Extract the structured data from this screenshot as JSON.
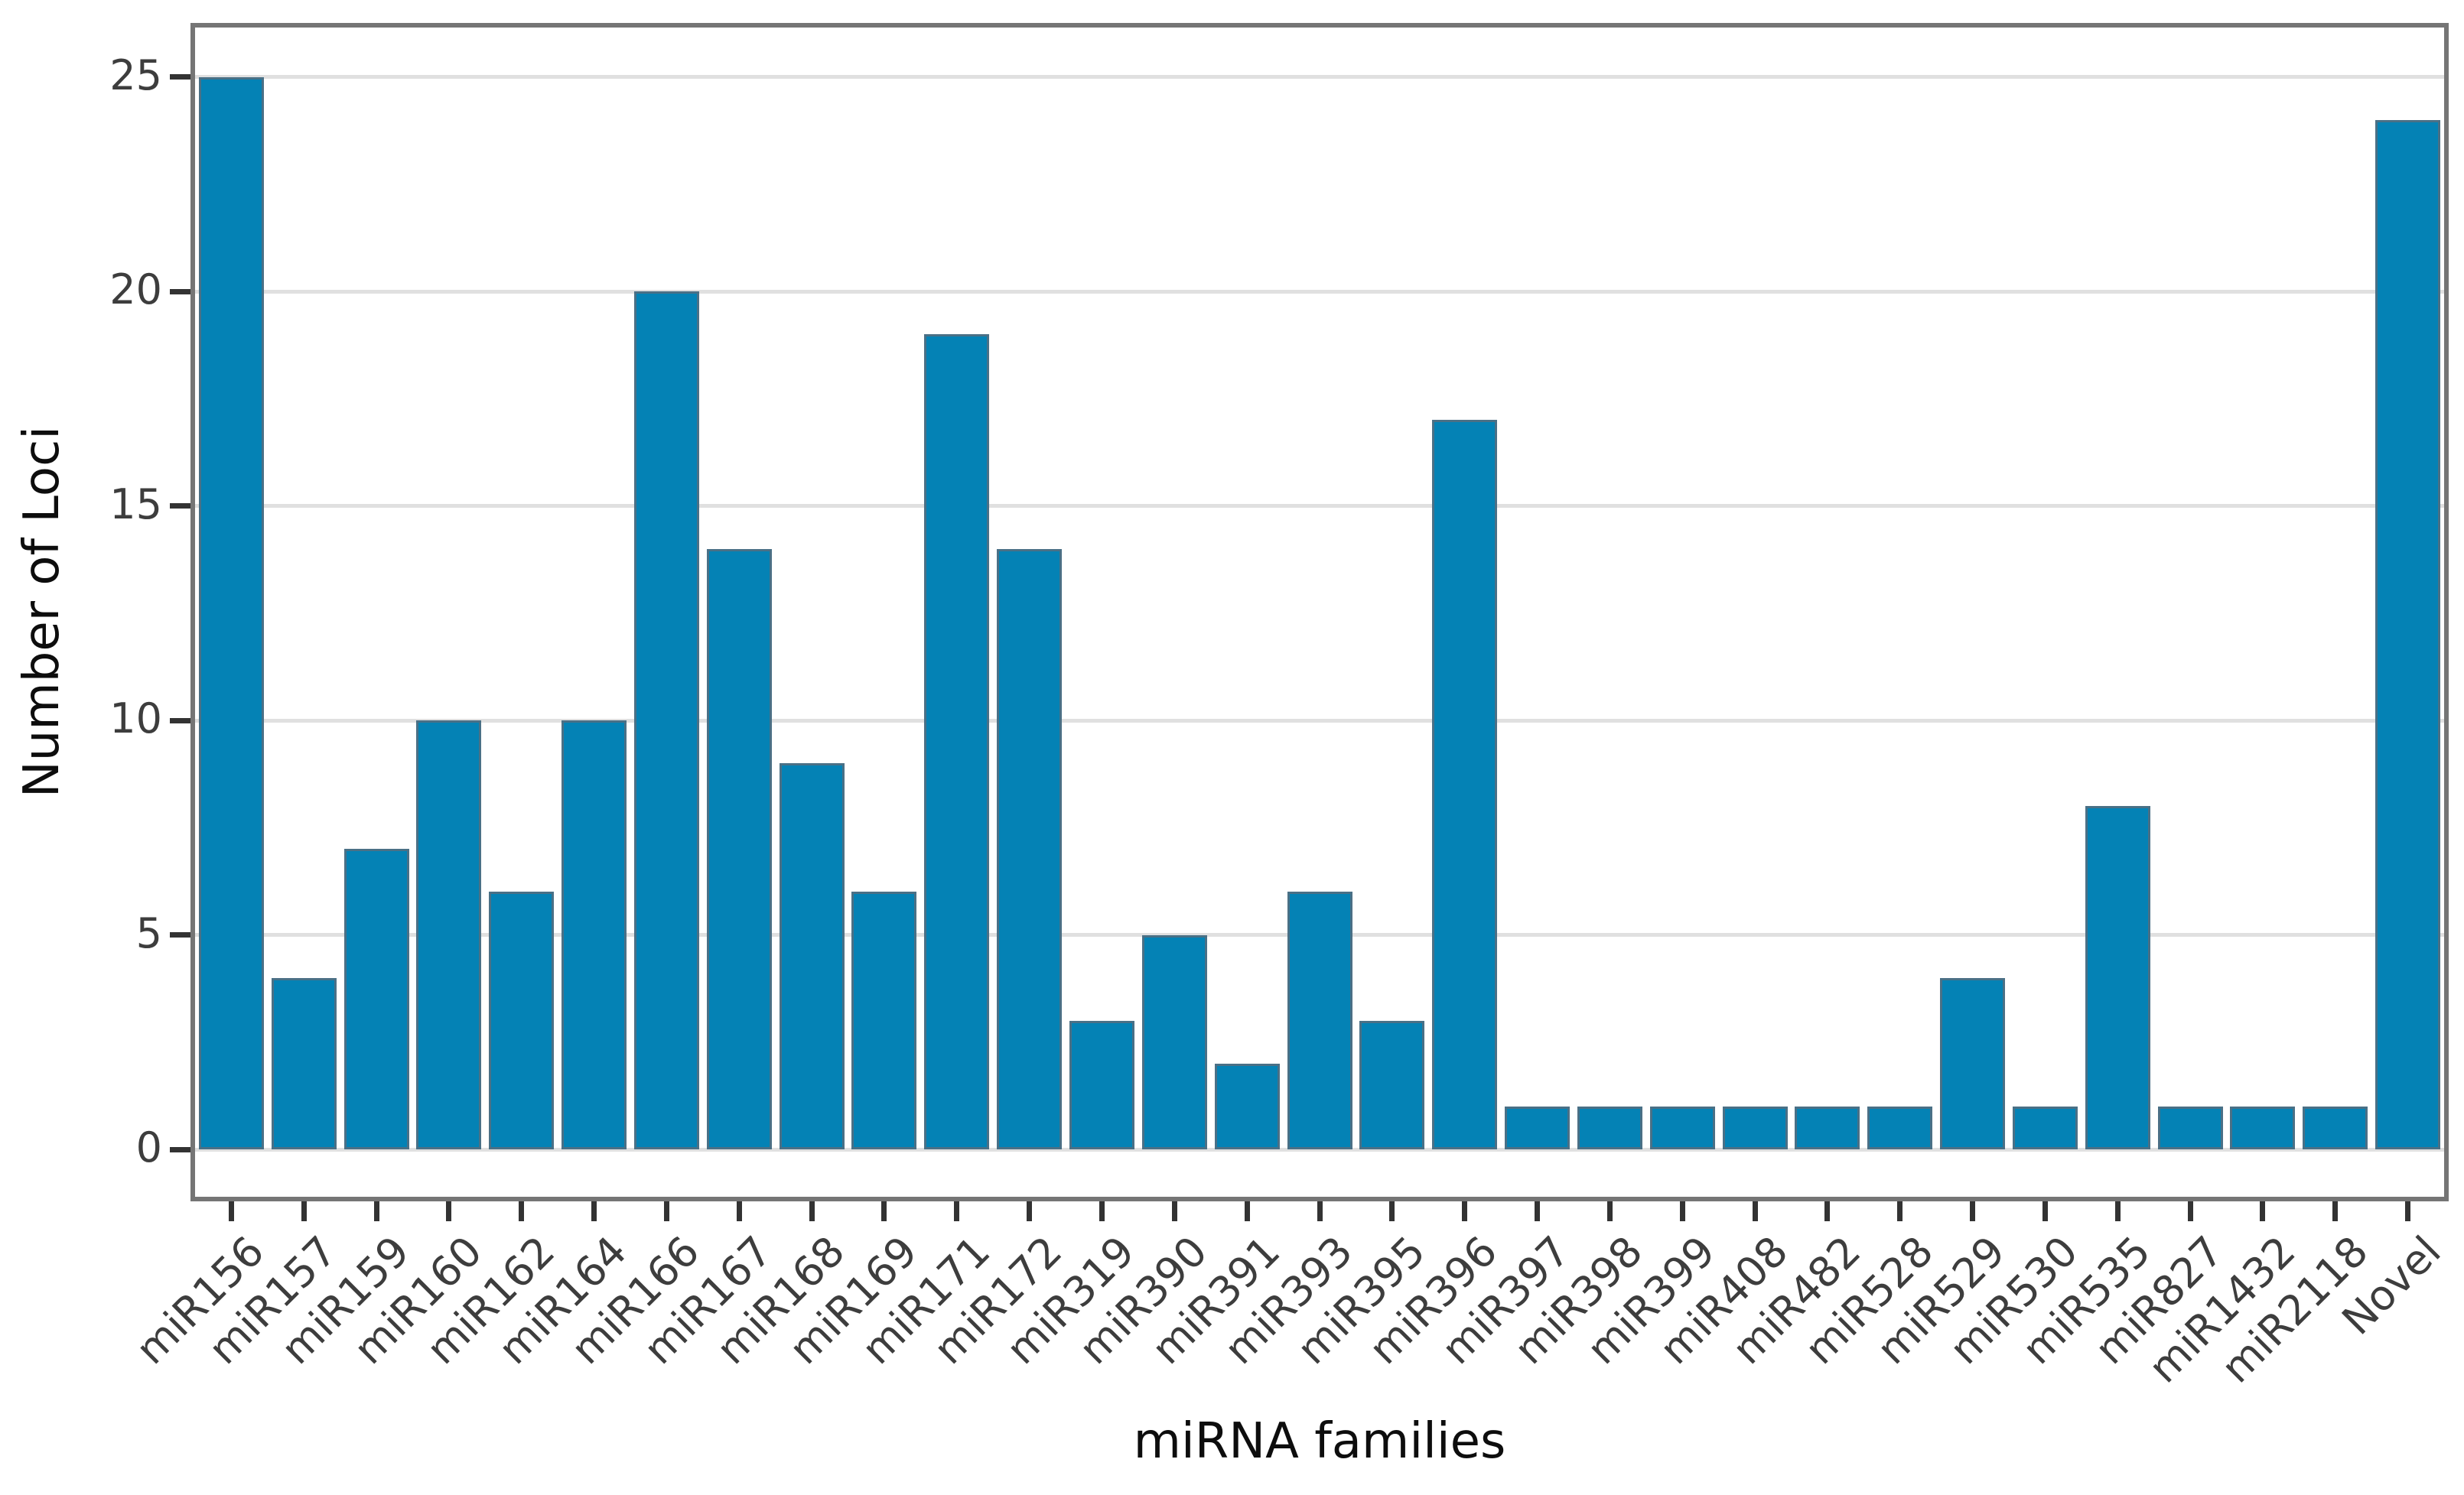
{
  "chart_data": {
    "type": "bar",
    "title": "",
    "xlabel": "miRNA families",
    "ylabel": "Number of Loci",
    "categories": [
      "miR156",
      "miR157",
      "miR159",
      "miR160",
      "miR162",
      "miR164",
      "miR166",
      "miR167",
      "miR168",
      "miR169",
      "miR171",
      "miR172",
      "miR319",
      "miR390",
      "miR391",
      "miR393",
      "miR395",
      "miR396",
      "miR397",
      "miR398",
      "miR399",
      "miR408",
      "miR482",
      "miR528",
      "miR529",
      "miR530",
      "miR535",
      "miR827",
      "miR1432",
      "miR2118",
      "Novel"
    ],
    "values": [
      25,
      4,
      7,
      10,
      6,
      10,
      20,
      14,
      9,
      6,
      19,
      14,
      3,
      5,
      2,
      6,
      3,
      17,
      1,
      1,
      1,
      1,
      1,
      1,
      4,
      1,
      8,
      1,
      1,
      1,
      24
    ],
    "yticks": [
      0,
      5,
      10,
      15,
      20,
      25
    ],
    "ylim": [
      -1.1,
      26.2
    ],
    "grid": "horizontal",
    "legend": "none",
    "x_tick_label_rotation_deg": 45
  },
  "colors": {
    "bar_fill": "#0482b5",
    "bar_edge": "#4a7086",
    "gridline": "#e0e0e0",
    "panel_spine": "#757575",
    "tick_mark": "#333333",
    "tick_label": "#3d3d3d",
    "axis_title": "#0d0d0d",
    "background": "#ffffff"
  }
}
